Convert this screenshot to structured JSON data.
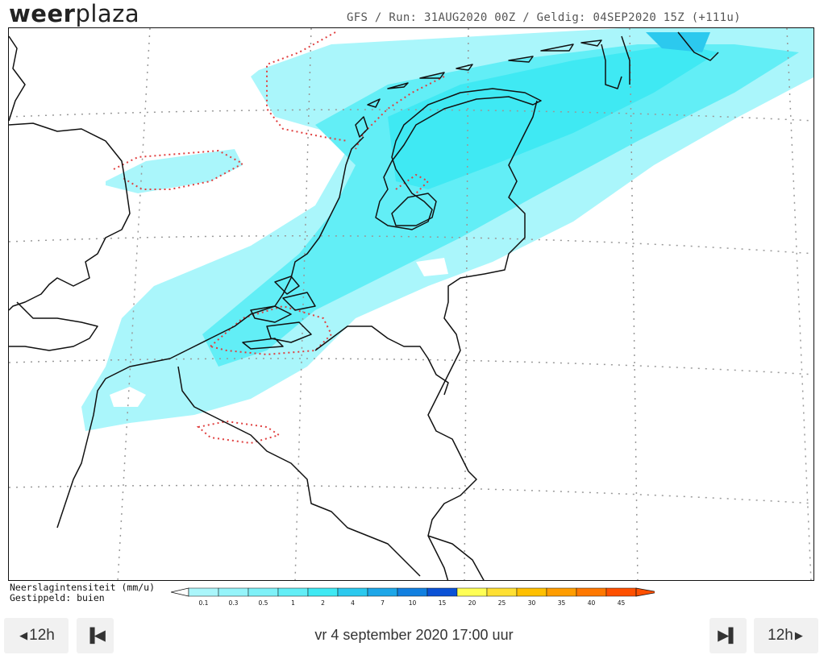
{
  "logo": {
    "bold": "weer",
    "thin": "plaza"
  },
  "run_info": "GFS / Run: 31AUG2020 00Z / Geldig: 04SEP2020 15Z (+111u)",
  "legend": {
    "line1": "Neerslagintensiteit (mm/u)",
    "line2": "Gestippeld: buien",
    "ticks": [
      "0.1",
      "0.3",
      "0.5",
      "1",
      "2",
      "4",
      "7",
      "10",
      "15",
      "20",
      "25",
      "30",
      "35",
      "40",
      "45"
    ],
    "colors": [
      "#aaf6fb",
      "#95f4fa",
      "#7ef1f8",
      "#62eef6",
      "#3fe9f3",
      "#2cc9ee",
      "#1ea7e8",
      "#1280e0",
      "#0b52d6",
      "#ffff55",
      "#ffe033",
      "#ffc000",
      "#ff9d00",
      "#ff7800",
      "#ff5000"
    ]
  },
  "nav": {
    "back_label": "12h",
    "forward_label": "12h",
    "datetime": "vr 4 september 2020 17:00 uur"
  }
}
